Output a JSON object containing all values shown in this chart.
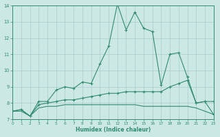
{
  "xlabel": "Humidex (Indice chaleur)",
  "x": [
    0,
    1,
    2,
    3,
    4,
    5,
    6,
    7,
    8,
    9,
    10,
    11,
    12,
    13,
    14,
    15,
    16,
    17,
    18,
    19,
    20,
    21,
    22,
    23
  ],
  "line1": [
    7.5,
    7.6,
    7.2,
    8.1,
    8.1,
    8.8,
    9.0,
    8.9,
    9.3,
    9.2,
    10.4,
    11.5,
    14.1,
    12.5,
    13.6,
    12.6,
    12.4,
    9.1,
    11.0,
    11.1,
    9.6,
    8.0,
    8.1,
    8.1
  ],
  "line2": [
    7.5,
    7.6,
    7.2,
    7.9,
    8.0,
    8.1,
    8.2,
    8.2,
    8.3,
    8.4,
    8.5,
    8.6,
    8.6,
    8.7,
    8.7,
    8.7,
    8.7,
    8.7,
    9.0,
    9.2,
    9.4,
    8.0,
    8.1,
    7.3
  ],
  "line3": [
    7.5,
    7.5,
    7.2,
    7.7,
    7.8,
    7.8,
    7.9,
    7.9,
    7.9,
    7.9,
    7.9,
    7.9,
    7.9,
    7.9,
    7.9,
    7.8,
    7.8,
    7.8,
    7.8,
    7.8,
    7.8,
    7.7,
    7.5,
    7.3
  ],
  "line_color": "#2e8b6e",
  "bg_color": "#cce8e4",
  "grid_color": "#aacccc",
  "ylim": [
    7,
    14
  ],
  "xlim": [
    0,
    23
  ],
  "yticks": [
    7,
    8,
    9,
    10,
    11,
    12,
    13,
    14
  ],
  "xticks": [
    0,
    1,
    2,
    3,
    4,
    5,
    6,
    7,
    8,
    9,
    10,
    11,
    12,
    13,
    14,
    15,
    16,
    17,
    18,
    19,
    20,
    21,
    22,
    23
  ],
  "xtick_labels": [
    "0",
    "1",
    "2",
    "3",
    "4",
    "5",
    "6",
    "7",
    "8",
    "9",
    "10",
    "11",
    "12",
    "13",
    "14",
    "15",
    "16",
    "17",
    "18",
    "19",
    "20",
    "21",
    "22",
    "23"
  ]
}
